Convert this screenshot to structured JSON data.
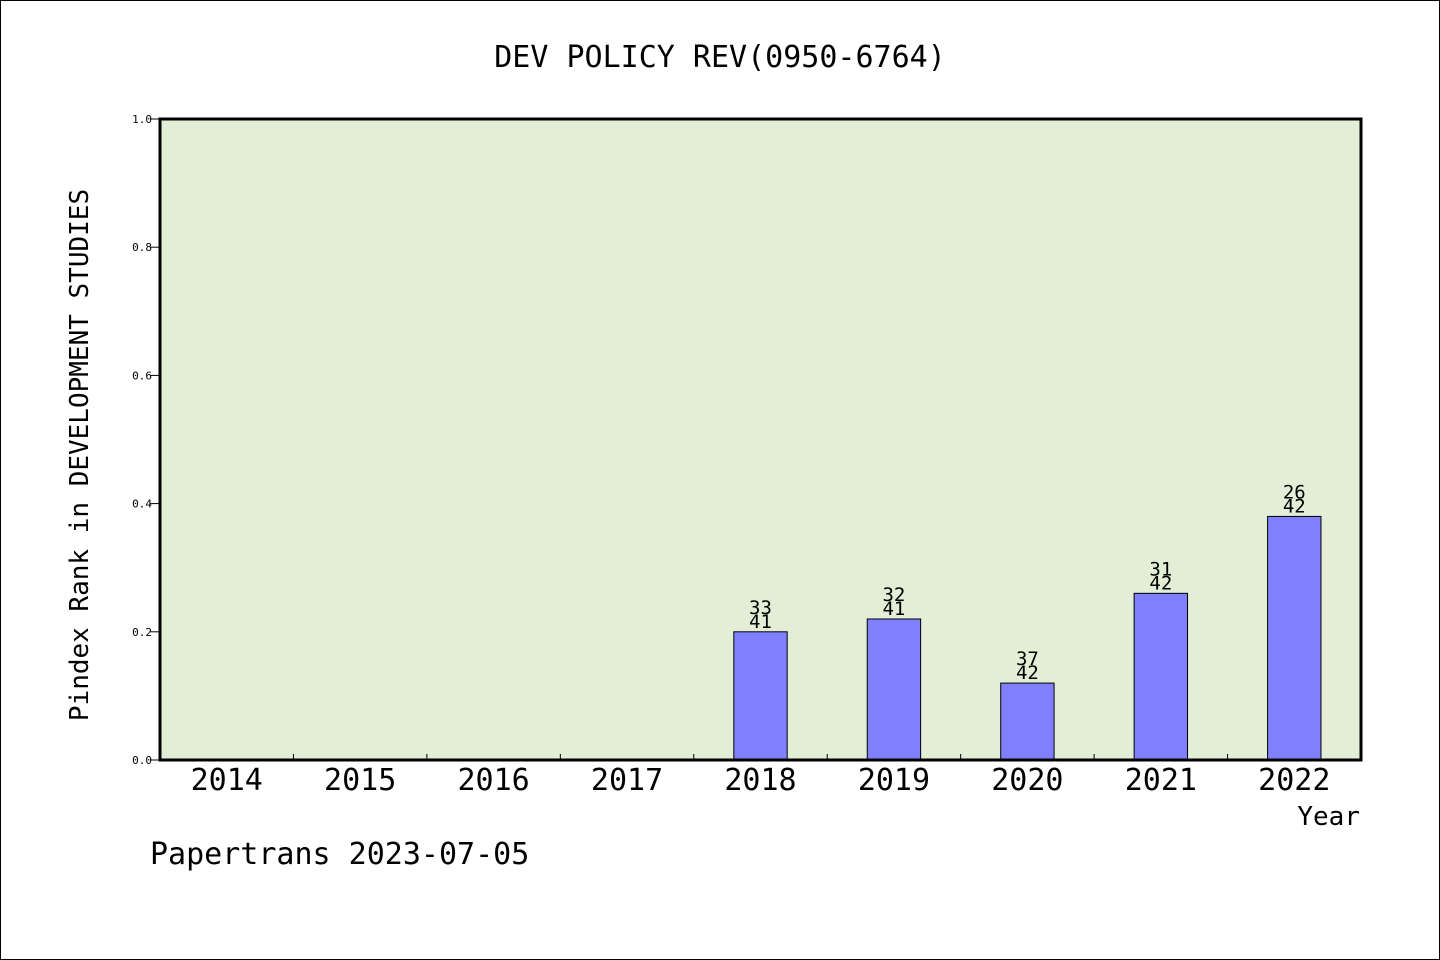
{
  "chart_data": {
    "type": "bar",
    "title": "DEV POLICY REV(0950-6764)",
    "xlabel": "Year",
    "ylabel": "Pindex Rank in DEVELOPMENT STUDIES",
    "categories": [
      "2014",
      "2015",
      "2016",
      "2017",
      "2018",
      "2019",
      "2020",
      "2021",
      "2022"
    ],
    "values": [
      null,
      null,
      null,
      null,
      0.2,
      0.22,
      0.12,
      0.26,
      0.38
    ],
    "rank_labels": [
      null,
      null,
      null,
      null,
      "33",
      "32",
      "37",
      "31",
      "26"
    ],
    "total_labels": [
      null,
      null,
      null,
      null,
      "41",
      "41",
      "42",
      "42",
      "42"
    ],
    "ylim": [
      0,
      1.0
    ],
    "yticks": [
      "0.0",
      "0.2",
      "0.4",
      "0.6",
      "0.8",
      "1.0"
    ],
    "grid": false,
    "colors": {
      "plot_background": "#e2efd6",
      "bar_fill": "#8080ff",
      "bar_stroke": "#000000"
    }
  },
  "footer": "Papertrans 2023-07-05"
}
